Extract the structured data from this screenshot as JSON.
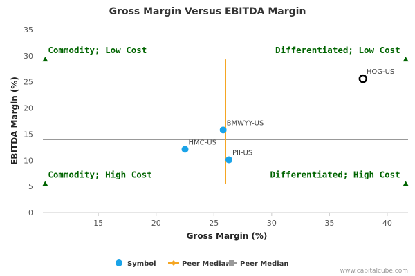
{
  "chart_data": {
    "type": "scatter",
    "title": "Gross Margin Versus EBITDA Margin",
    "xlabel": "Gross Margin (%)",
    "ylabel": "EBITDA Margin (%)",
    "xlim": [
      10.2,
      41.8
    ],
    "ylim": [
      0,
      35
    ],
    "xticks": [
      15,
      20,
      25,
      30,
      35,
      40
    ],
    "yticks": [
      0,
      5,
      10,
      15,
      20,
      25,
      30,
      35
    ],
    "points": [
      {
        "label": "BMWYY-US",
        "x": 25.8,
        "y": 15.8,
        "style": "symbol"
      },
      {
        "label": "HMC-US",
        "x": 22.5,
        "y": 12.1,
        "style": "symbol"
      },
      {
        "label": "PII-US",
        "x": 26.3,
        "y": 10.1,
        "style": "symbol"
      },
      {
        "label": "HOG-US",
        "x": 37.9,
        "y": 25.6,
        "style": "highlight"
      }
    ],
    "peer_median_x": 26.0,
    "peer_median_x_span": [
      5.5,
      29.3
    ],
    "peer_median_y": 14.0,
    "quadrants": [
      {
        "label": "Commodity; Low Cost",
        "corner": "top-left",
        "marker_x": 10.4,
        "marker_y": 29.3
      },
      {
        "label": "Differentiated; Low Cost",
        "corner": "top-right",
        "marker_x": 41.6,
        "marker_y": 29.3
      },
      {
        "label": "Commodity; High Cost",
        "corner": "bottom-left",
        "marker_x": 10.4,
        "marker_y": 5.5
      },
      {
        "label": "Differentiated; High Cost",
        "corner": "bottom-right",
        "marker_x": 41.6,
        "marker_y": 5.5
      }
    ],
    "legend": [
      {
        "label": "Symbol",
        "kind": "symbol"
      },
      {
        "label": "Peer Median",
        "kind": "vertical-median"
      },
      {
        "label": "Peer Median",
        "kind": "horizontal-median"
      }
    ],
    "legend_position": "bottom-center"
  },
  "colors": {
    "symbol": "#1aa3e8",
    "vertical_median": "#f5a623",
    "horizontal_median": "#999999",
    "quadrant_text": "#006400",
    "highlight_stroke": "#000000"
  },
  "credit": "www.capitalcube.com"
}
